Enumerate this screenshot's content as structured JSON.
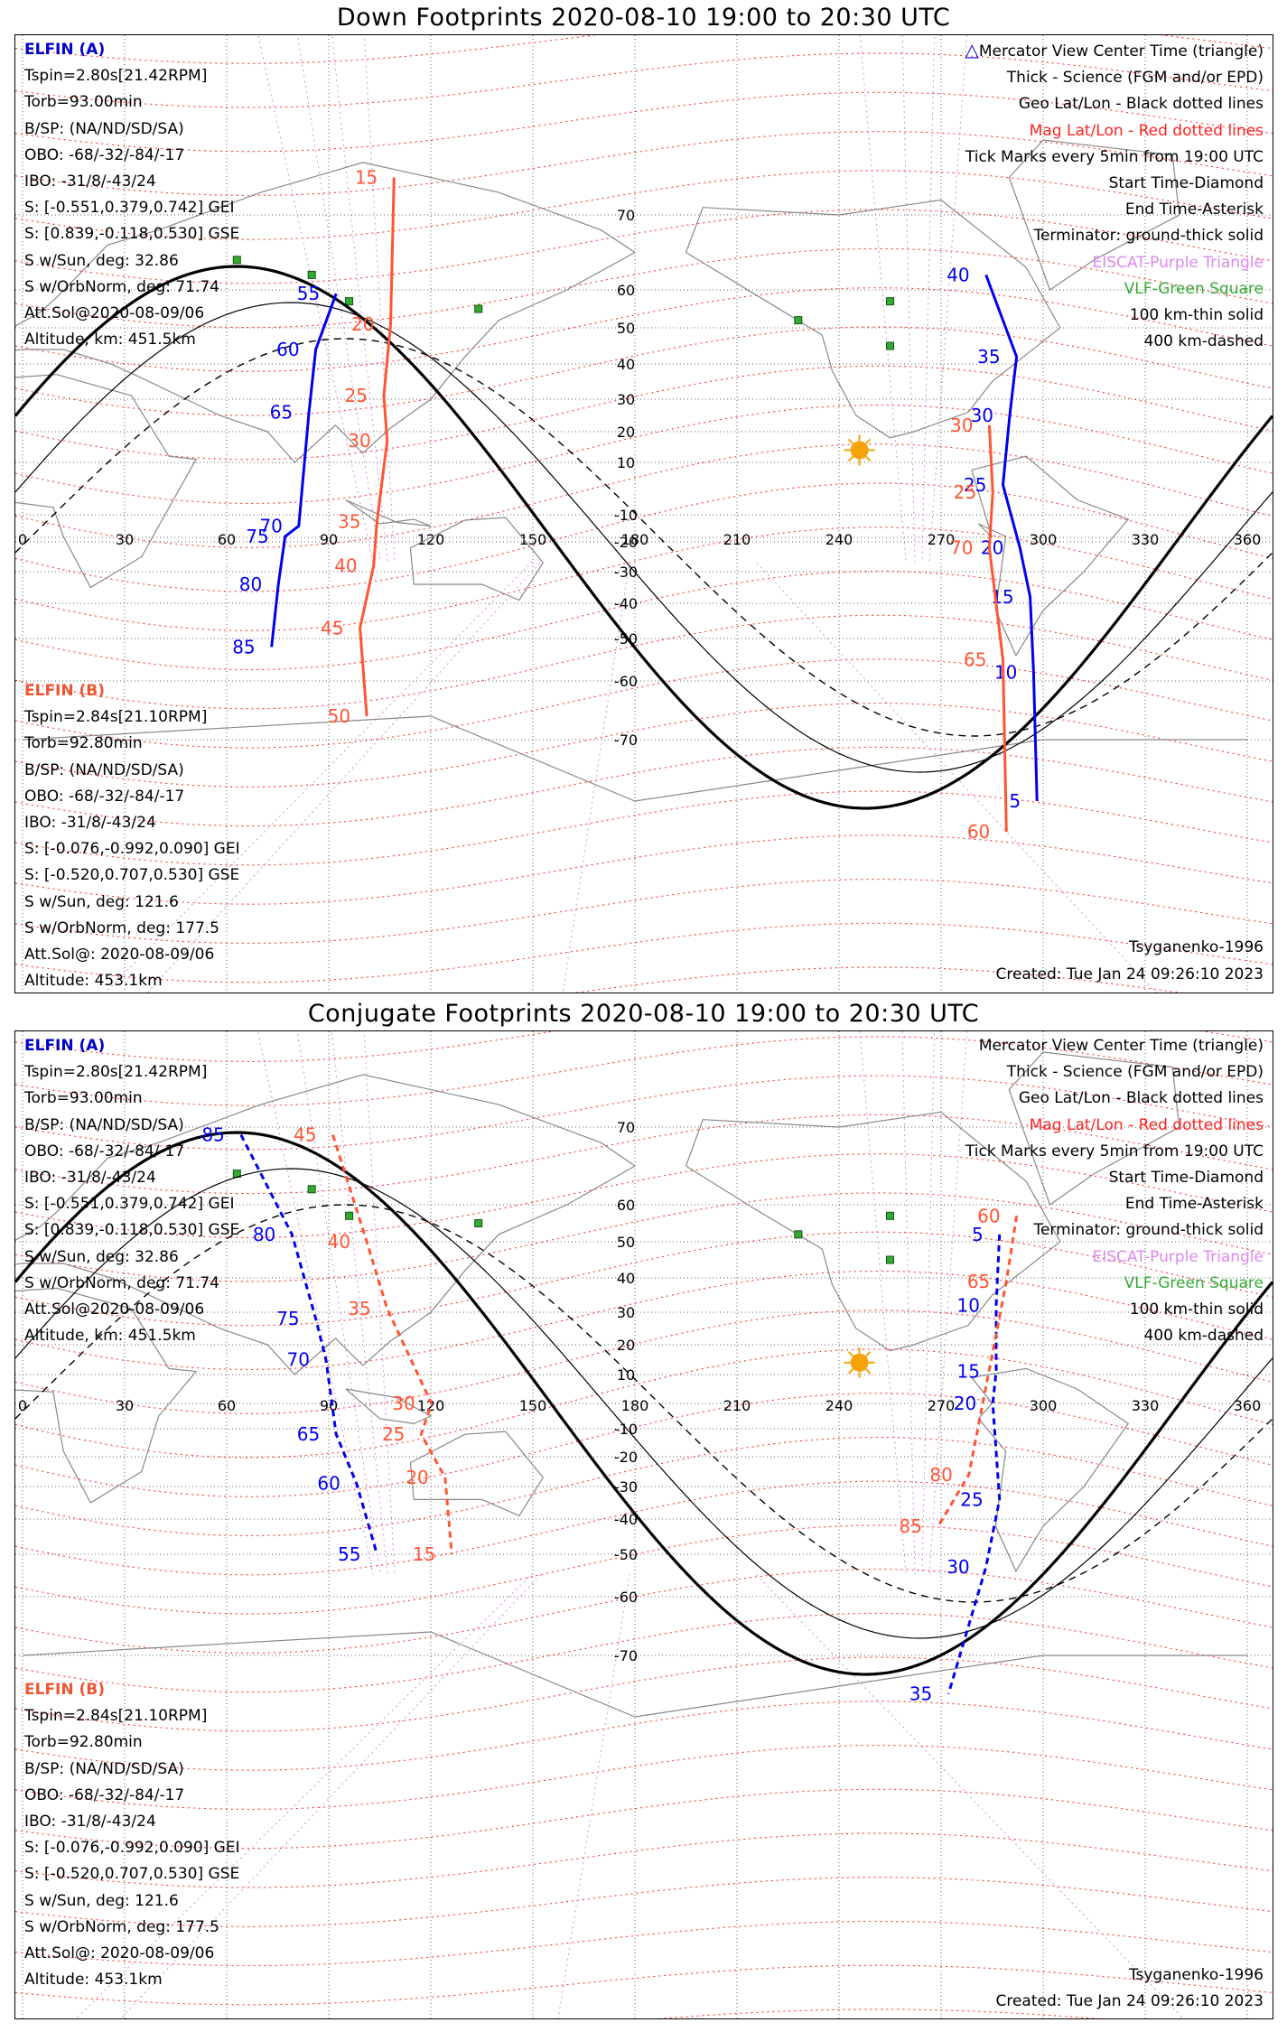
{
  "panels": [
    {
      "title": "Down Footprints 2020-08-10 19:00 to 20:30 UTC",
      "elfin_a": {
        "name": "ELFIN (A)",
        "lines": [
          "Tspin=2.80s[21.42RPM]",
          "Torb=93.00min",
          "B/SP: (NA/ND/SD/SA)",
          "OBO: -68/-32/-84/-17",
          "IBO: -31/8/-43/24",
          "S: [-0.551,0.379,0.742] GEI",
          "S: [0.839,-0.118,0.530] GSE",
          "S w/Sun, deg: 32.86",
          "S w/OrbNorm, deg: 71.74",
          "Att.Sol@2020-08-09/06",
          "Altitude, km: 451.5km"
        ]
      },
      "elfin_b": {
        "name": "ELFIN (B)",
        "lines": [
          "Tspin=2.84s[21.10RPM]",
          "Torb=92.80min",
          "B/SP: (NA/ND/SD/SA)",
          "OBO: -68/-32/-84/-17",
          "IBO: -31/8/-43/24",
          "S: [-0.076,-0.992,0.090] GEI",
          "S: [-0.520,0.707,0.530] GSE",
          "S w/Sun, deg: 121.6",
          "S w/OrbNorm, deg: 177.5",
          "Att.Sol@: 2020-08-09/06",
          "Altitude: 453.1km"
        ]
      },
      "legend": {
        "mercator": "Mercator View Center Time (triangle)",
        "thick": "Thick - Science (FGM and/or EPD)",
        "geo": "Geo Lat/Lon - Black dotted lines",
        "mag": "Mag Lat/Lon - Red dotted lines",
        "tick": "Tick Marks every 5min from 19:00 UTC",
        "start": "Start Time-Diamond",
        "end": "End Time-Asterisk",
        "terminator": "Terminator: ground-thick solid",
        "eiscat": "EISCAT-Purple Triangle",
        "vlf": "VLF-Green Square",
        "km100": "100 km-thin solid",
        "km400": "400 km-dashed"
      },
      "model": "Tsyganenko-1996",
      "created": "Created: Tue Jan 24 09:26:10 2023",
      "track_a_ticks": [
        {
          "label": "55",
          "lon": 89,
          "lat": 59
        },
        {
          "label": "60",
          "lon": 83,
          "lat": 44
        },
        {
          "label": "65",
          "lon": 81,
          "lat": 26
        },
        {
          "label": "70",
          "lon": 78,
          "lat": -5
        },
        {
          "label": "75",
          "lon": 74,
          "lat": -18
        },
        {
          "label": "80",
          "lon": 72,
          "lat": -34
        },
        {
          "label": "85",
          "lon": 70,
          "lat": -52
        },
        {
          "label": "40",
          "lon": 280,
          "lat": 62
        },
        {
          "label": "35",
          "lon": 289,
          "lat": 42
        },
        {
          "label": "30",
          "lon": 287,
          "lat": 25
        },
        {
          "label": "25",
          "lon": 285,
          "lat": 7
        },
        {
          "label": "20",
          "lon": 290,
          "lat": -22
        },
        {
          "label": "15",
          "lon": 293,
          "lat": -38
        },
        {
          "label": "10",
          "lon": 294,
          "lat": -58
        },
        {
          "label": "5",
          "lon": 295,
          "lat": -78
        }
      ],
      "track_b_ticks": [
        {
          "label": "15",
          "lon": 106,
          "lat": 75
        },
        {
          "label": "20",
          "lon": 105,
          "lat": 51
        },
        {
          "label": "25",
          "lon": 103,
          "lat": 31
        },
        {
          "label": "30",
          "lon": 104,
          "lat": 17
        },
        {
          "label": "35",
          "lon": 101,
          "lat": -7
        },
        {
          "label": "40",
          "lon": 100,
          "lat": -28
        },
        {
          "label": "45",
          "lon": 96,
          "lat": -47
        },
        {
          "label": "50",
          "lon": 98,
          "lat": -66
        },
        {
          "label": "30",
          "lon": 281,
          "lat": 22
        },
        {
          "label": "25",
          "lon": 282,
          "lat": 6
        },
        {
          "label": "70",
          "lon": 281,
          "lat": -22
        },
        {
          "label": "65",
          "lon": 285,
          "lat": -55
        },
        {
          "label": "60",
          "lon": 286,
          "lat": -82
        }
      ]
    },
    {
      "title": "Conjugate Footprints 2020-08-10 19:00 to 20:30 UTC",
      "elfin_a": {
        "name": "ELFIN (A)",
        "lines": [
          "Tspin=2.80s[21.42RPM]",
          "Torb=93.00min",
          "B/SP: (NA/ND/SD/SA)",
          "OBO: -68/-32/-84/-17",
          "IBO: -31/8/-43/24",
          "S: [-0.551,0.379,0.742] GEI",
          "S: [0.839,-0.118,0.530] GSE",
          "S w/Sun, deg: 32.86",
          "S w/OrbNorm, deg: 71.74",
          "Att.Sol@2020-08-09/06",
          "Altitude, km: 451.5km"
        ]
      },
      "elfin_b": {
        "name": "ELFIN (B)",
        "lines": [
          "Tspin=2.84s[21.10RPM]",
          "Torb=92.80min",
          "B/SP: (NA/ND/SD/SA)",
          "OBO: -68/-32/-84/-17",
          "IBO: -31/8/-43/24",
          "S: [-0.076,-0.992,0.090] GEI",
          "S: [-0.520,0.707,0.530] GSE",
          "S w/Sun, deg: 121.6",
          "S w/OrbNorm, deg: 177.5",
          "Att.Sol@: 2020-08-09/06",
          "Altitude: 453.1km"
        ]
      },
      "legend": {
        "mercator": "Mercator View Center Time (triangle)",
        "thick": "Thick - Science (FGM and/or EPD)",
        "geo": "Geo Lat/Lon - Black dotted lines",
        "mag": "Mag Lat/Lon - Red dotted lines",
        "tick": "Tick Marks every 5min from 19:00 UTC",
        "start": "Start Time-Diamond",
        "end": "End Time-Asterisk",
        "terminator": "Terminator: ground-thick solid",
        "eiscat": "EISCAT-Purple Triangle",
        "vlf": "VLF-Green Square",
        "km100": "100 km-thin solid",
        "km400": "400 km-dashed"
      },
      "model": "Tsyganenko-1996",
      "created": "Created: Tue Jan 24 09:26:10 2023",
      "track_a_ticks": [
        {
          "label": "85",
          "lon": 61,
          "lat": 69
        },
        {
          "label": "80",
          "lon": 76,
          "lat": 52
        },
        {
          "label": "75",
          "lon": 83,
          "lat": 28
        },
        {
          "label": "70",
          "lon": 86,
          "lat": 15
        },
        {
          "label": "65",
          "lon": 89,
          "lat": -12
        },
        {
          "label": "60",
          "lon": 95,
          "lat": -29
        },
        {
          "label": "55",
          "lon": 101,
          "lat": -50
        },
        {
          "label": "5",
          "lon": 284,
          "lat": 52
        },
        {
          "label": "10",
          "lon": 283,
          "lat": 32
        },
        {
          "label": "15",
          "lon": 283,
          "lat": 11
        },
        {
          "label": "20",
          "lon": 282,
          "lat": 0
        },
        {
          "label": "25",
          "lon": 284,
          "lat": -34
        },
        {
          "label": "30",
          "lon": 280,
          "lat": -53
        },
        {
          "label": "35",
          "lon": 269,
          "lat": -75
        }
      ],
      "track_b_ticks": [
        {
          "label": "45",
          "lon": 88,
          "lat": 69
        },
        {
          "label": "40",
          "lon": 98,
          "lat": 50
        },
        {
          "label": "35",
          "lon": 104,
          "lat": 31
        },
        {
          "label": "30",
          "lon": 117,
          "lat": 0
        },
        {
          "label": "25",
          "lon": 114,
          "lat": -12
        },
        {
          "label": "20",
          "lon": 121,
          "lat": -27
        },
        {
          "label": "15",
          "lon": 123,
          "lat": -50
        },
        {
          "label": "60",
          "lon": 289,
          "lat": 57
        },
        {
          "label": "65",
          "lon": 286,
          "lat": 39
        },
        {
          "label": "80",
          "lon": 275,
          "lat": -26
        },
        {
          "label": "85",
          "lon": 266,
          "lat": -42
        }
      ]
    }
  ],
  "axes": {
    "lon_ticks": [
      "0",
      "30",
      "60",
      "90",
      "120",
      "150",
      "180",
      "210",
      "240",
      "270",
      "300",
      "330",
      "360"
    ],
    "lat_ticks": [
      "70",
      "60",
      "50",
      "40",
      "30",
      "20",
      "10",
      "-10",
      "-20",
      "-30",
      "-40",
      "-50",
      "-60",
      "-70"
    ]
  },
  "colors": {
    "elfin_a": "#0000ee",
    "elfin_b": "#ff5533",
    "mag_grid": "#ff3333",
    "eiscat": "#cc77ee",
    "vlf_square": "#33aa33",
    "sun": "#f5a30a"
  }
}
